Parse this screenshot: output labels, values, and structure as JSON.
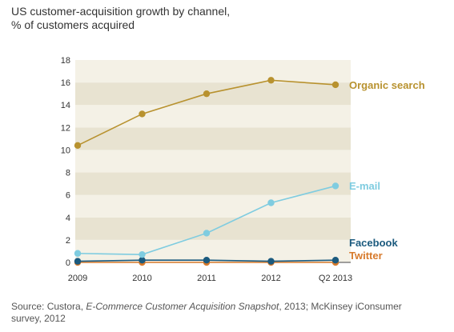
{
  "title_line1": "US customer-acquisition growth by channel,",
  "title_line2": "% of customers acquired",
  "source_prefix": "Source: Custora, ",
  "source_italic": "E-Commerce Customer Acquisition Snapshot",
  "source_suffix": ", 2013; McKinsey iConsumer survey, 2012",
  "chart_data": {
    "type": "line",
    "title": "US customer-acquisition growth by channel, % of customers acquired",
    "xlabel": "",
    "ylabel": "",
    "categories": [
      "2009",
      "2010",
      "2011",
      "2012",
      "Q2 2013"
    ],
    "ylim": [
      0,
      18
    ],
    "yticks": [
      0,
      2,
      4,
      6,
      8,
      10,
      12,
      14,
      16,
      18
    ],
    "grid": "alternating horizontal bands",
    "legend": "labels at line ends (right)",
    "series": [
      {
        "name": "Organic search",
        "color": "#b8922f",
        "values": [
          10.4,
          13.2,
          15.0,
          16.2,
          15.8
        ]
      },
      {
        "name": "E-mail",
        "color": "#7fcce0",
        "values": [
          0.8,
          0.7,
          2.6,
          5.3,
          6.8
        ]
      },
      {
        "name": "Facebook",
        "color": "#1b5a7e",
        "values": [
          0.1,
          0.2,
          0.2,
          0.1,
          0.2
        ]
      },
      {
        "name": "Twitter",
        "color": "#d77a2c",
        "values": [
          0.0,
          0.0,
          0.0,
          0.0,
          0.0
        ]
      }
    ]
  }
}
